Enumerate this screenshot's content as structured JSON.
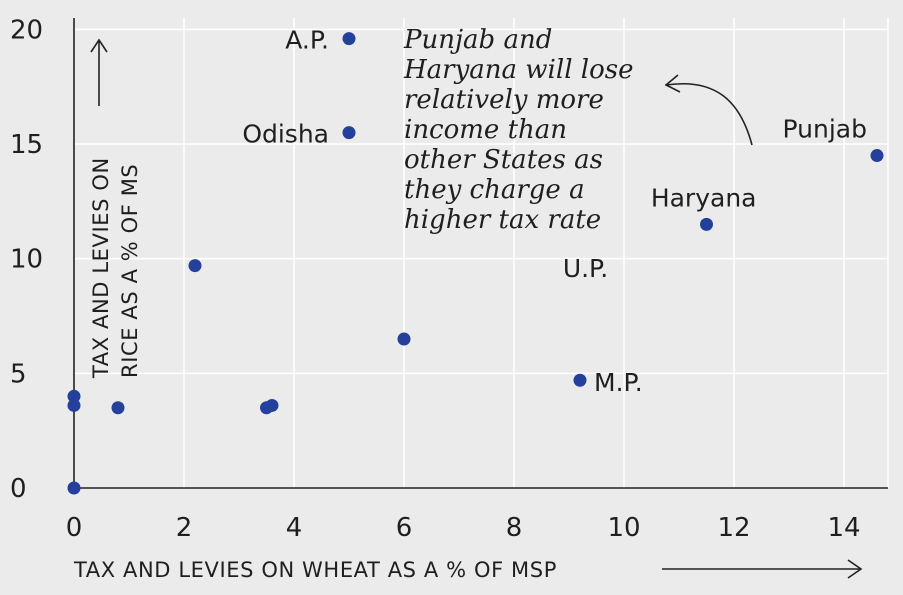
{
  "chart_data": {
    "type": "scatter",
    "title": "",
    "xlabel": "TAX AND LEVIES ON WHEAT AS A % OF MSP",
    "ylabel_line1": "TAX AND LEVIES ON",
    "ylabel_line2": "RICE AS A % OF MS",
    "xlim": [
      0,
      14.8
    ],
    "ylim": [
      0,
      20.5
    ],
    "xticks": [
      0,
      2,
      4,
      6,
      8,
      10,
      12,
      14
    ],
    "yticks": [
      0,
      5,
      10,
      15,
      20
    ],
    "annotation_lines": [
      "Punjab and",
      "Haryana will lose",
      "relatively more",
      "income than",
      "other States as",
      "they charge a",
      "higher tax rate"
    ],
    "points": [
      {
        "x": 5.0,
        "y": 19.6,
        "label": "A.P."
      },
      {
        "x": 5.0,
        "y": 15.5,
        "label": "Odisha"
      },
      {
        "x": 14.6,
        "y": 14.5,
        "label": "Punjab"
      },
      {
        "x": 11.5,
        "y": 11.5,
        "label": "Haryana"
      },
      {
        "x": 9.2,
        "y": 4.7,
        "label": "M.P."
      },
      {
        "x": 2.2,
        "y": 9.7,
        "label": ""
      },
      {
        "x": 6.0,
        "y": 6.5,
        "label": ""
      },
      {
        "x": 0.8,
        "y": 3.5,
        "label": ""
      },
      {
        "x": 3.5,
        "y": 3.5,
        "label": ""
      },
      {
        "x": 3.6,
        "y": 3.6,
        "label": ""
      },
      {
        "x": 0.0,
        "y": 4.0,
        "label": ""
      },
      {
        "x": 0.0,
        "y": 3.6,
        "label": ""
      },
      {
        "x": 0.0,
        "y": 0.0,
        "label": ""
      }
    ],
    "extra_labels": [
      {
        "text": "U.P.",
        "x": 9.3,
        "y": 9.2
      }
    ],
    "marker_color": "#24409a"
  }
}
